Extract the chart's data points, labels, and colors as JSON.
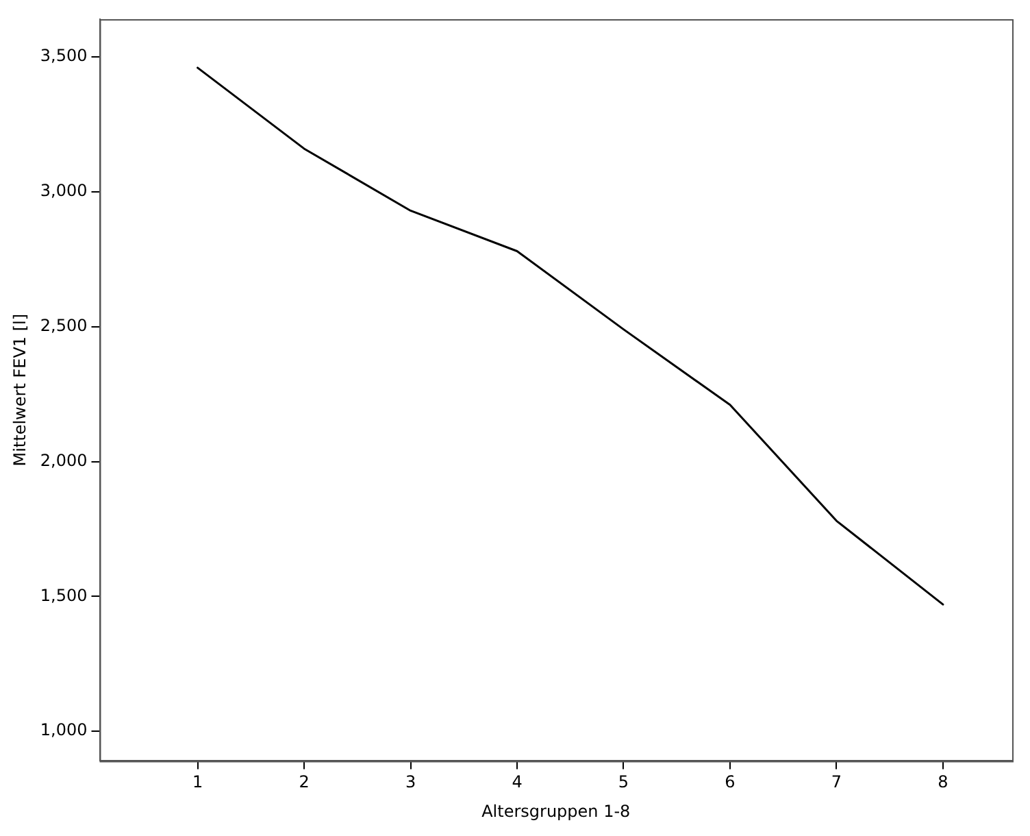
{
  "chart_data": {
    "type": "line",
    "xlabel": "Altersgruppen 1-8",
    "ylabel": "Mittelwert FEV1 [l]",
    "x": [
      1,
      2,
      3,
      4,
      5,
      6,
      7,
      8
    ],
    "series": [
      {
        "color": "#000000",
        "values": [
          3460,
          3160,
          2930,
          2780,
          2490,
          2210,
          1780,
          1470
        ]
      }
    ],
    "xlim": [
      0.08,
      8.65
    ],
    "xticks": [
      1,
      2,
      3,
      4,
      5,
      6,
      7,
      8
    ],
    "ylim": [
      890,
      3640
    ],
    "yticks": [
      {
        "value": 1000,
        "label": "1,000"
      },
      {
        "value": 1500,
        "label": "1,500"
      },
      {
        "value": 2000,
        "label": "2,000"
      },
      {
        "value": 2500,
        "label": "2,500"
      },
      {
        "value": 3000,
        "label": "3,000"
      },
      {
        "value": 3500,
        "label": "3,500"
      }
    ],
    "grid": false,
    "legend": false,
    "marker": "none",
    "line_style": "solid"
  }
}
